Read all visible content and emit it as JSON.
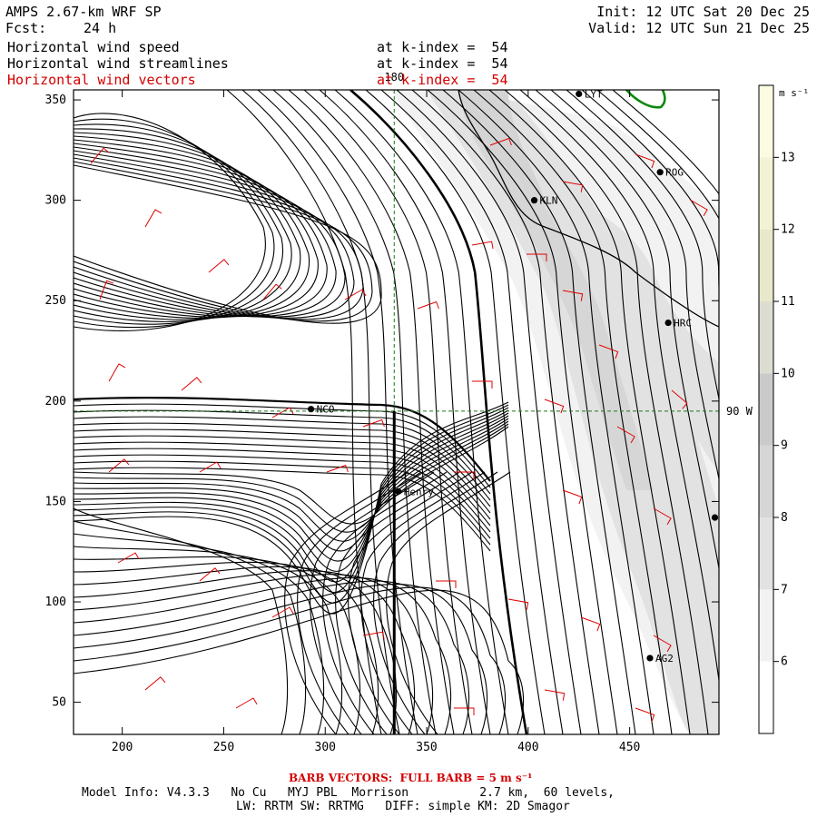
{
  "header": {
    "model": "AMPS 2.67-km WRF SP",
    "fcst_label": "Fcst:",
    "fcst_value": "24 h",
    "init": "Init: 12 UTC Sat 20 Dec 25",
    "valid": "Valid: 12 UTC Sun 21 Dec 25",
    "fields": [
      {
        "name": "Horizontal wind speed",
        "level": "at k-index =  54",
        "color": "#000000"
      },
      {
        "name": "Horizontal wind streamlines",
        "level": "at k-index =  54",
        "color": "#000000"
      },
      {
        "name": "Horizontal wind vectors",
        "level": "at k-index =  54",
        "color": "#d40000"
      }
    ]
  },
  "chart_data": {
    "type": "heatmap",
    "title": "Horizontal wind speed / streamlines / vectors",
    "xlim": [
      176,
      494
    ],
    "ylim": [
      34,
      355
    ],
    "x_ticks": [
      200,
      250,
      300,
      350,
      400,
      450
    ],
    "y_ticks": [
      50,
      100,
      150,
      200,
      250,
      300,
      350
    ],
    "colorbar": {
      "unit": "m s⁻¹",
      "levels": [
        6,
        7,
        8,
        9,
        10,
        11,
        12,
        13
      ],
      "range": [
        5,
        14
      ],
      "colors": [
        "#ffffff",
        "#f2f2f2",
        "#e2e2e2",
        "#d6d6d6",
        "#cacaca",
        "#dcdcd0",
        "#e8e8cc",
        "#f2f2d4",
        "#fbfbe2"
      ]
    },
    "reference_lines": {
      "meridian": {
        "label": "180",
        "x": 334
      },
      "parallel": {
        "label": "90 W",
        "y": 195
      }
    },
    "cross_section": {
      "x": 334,
      "y_from": 34,
      "y_to": 195
    },
    "stations": [
      {
        "name": "LYT",
        "x": 425,
        "y": 353
      },
      {
        "name": "ROG",
        "x": 465,
        "y": 314
      },
      {
        "name": "KLN",
        "x": 403,
        "y": 300
      },
      {
        "name": "HRC",
        "x": 469,
        "y": 239
      },
      {
        "name": "NCO",
        "x": 293,
        "y": 196
      },
      {
        "name": "Henry",
        "x": 336,
        "y": 155
      },
      {
        "name": "AG2",
        "x": 460,
        "y": 72
      },
      {
        "name": "",
        "x": 492,
        "y": 142
      }
    ]
  },
  "footer": {
    "barb_note": "BARB VECTORS:  FULL BARB = 5 m s⁻¹",
    "model_info": "Model Info: V4.3.3   No Cu   MYJ PBL  Morrison          2.7 km,  60 levels,",
    "physics": "LW: RRTM SW: RRTMG   DIFF: simple KM: 2D Smagor"
  }
}
